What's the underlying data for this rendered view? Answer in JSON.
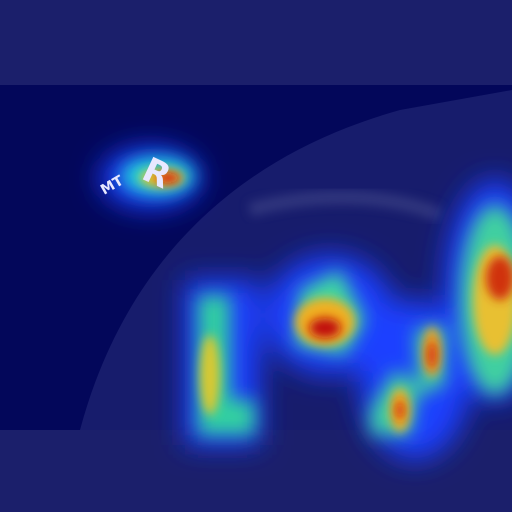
{
  "markers": {
    "side": "R",
    "tech": "MT"
  }
}
